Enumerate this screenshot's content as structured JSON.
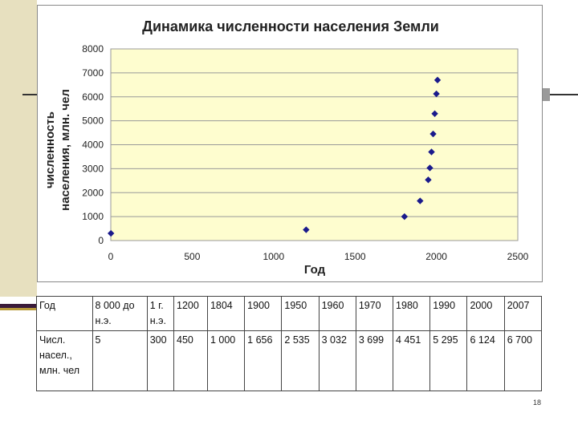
{
  "chart_data": {
    "type": "scatter",
    "title": "Динамика численности населения Земли",
    "xlabel": "Год",
    "ylabel_lines": [
      "численность",
      "населения, млн. чел"
    ],
    "xlim": [
      0,
      2500
    ],
    "ylim": [
      0,
      8000
    ],
    "x_ticks": [
      0,
      500,
      1000,
      1500,
      2000,
      2500
    ],
    "y_ticks": [
      0,
      1000,
      2000,
      3000,
      4000,
      5000,
      6000,
      7000,
      8000
    ],
    "grid": true,
    "marker_color": "#1a1a8c",
    "plot_bg_color": "#fefdcf",
    "points": [
      {
        "x": 1,
        "y": 300
      },
      {
        "x": 1200,
        "y": 450
      },
      {
        "x": 1804,
        "y": 1000
      },
      {
        "x": 1900,
        "y": 1656
      },
      {
        "x": 1950,
        "y": 2535
      },
      {
        "x": 1960,
        "y": 3032
      },
      {
        "x": 1970,
        "y": 3699
      },
      {
        "x": 1980,
        "y": 4451
      },
      {
        "x": 1990,
        "y": 5295
      },
      {
        "x": 2000,
        "y": 6124
      },
      {
        "x": 2007,
        "y": 6700
      }
    ]
  },
  "table": {
    "row1": [
      [
        "Год"
      ],
      [
        "8 000 до",
        "н.э."
      ],
      [
        "1 г.",
        "н.э."
      ],
      [
        "1200"
      ],
      [
        "1804"
      ],
      [
        "1900"
      ],
      [
        "1950"
      ],
      [
        "1960"
      ],
      [
        "1970"
      ],
      [
        "1980"
      ],
      [
        "1990"
      ],
      [
        "2000"
      ],
      [
        "2007"
      ]
    ],
    "row2": [
      [
        "Числ.",
        "насел.,",
        "млн. чел"
      ],
      [
        "5"
      ],
      [
        "300"
      ],
      [
        "450"
      ],
      [
        "1 000"
      ],
      [
        "1 656"
      ],
      [
        "2 535"
      ],
      [
        "3 032"
      ],
      [
        "3 699"
      ],
      [
        "4 451"
      ],
      [
        "5 295"
      ],
      [
        "6 124"
      ],
      [
        "6 700"
      ]
    ]
  },
  "page_number": "18"
}
